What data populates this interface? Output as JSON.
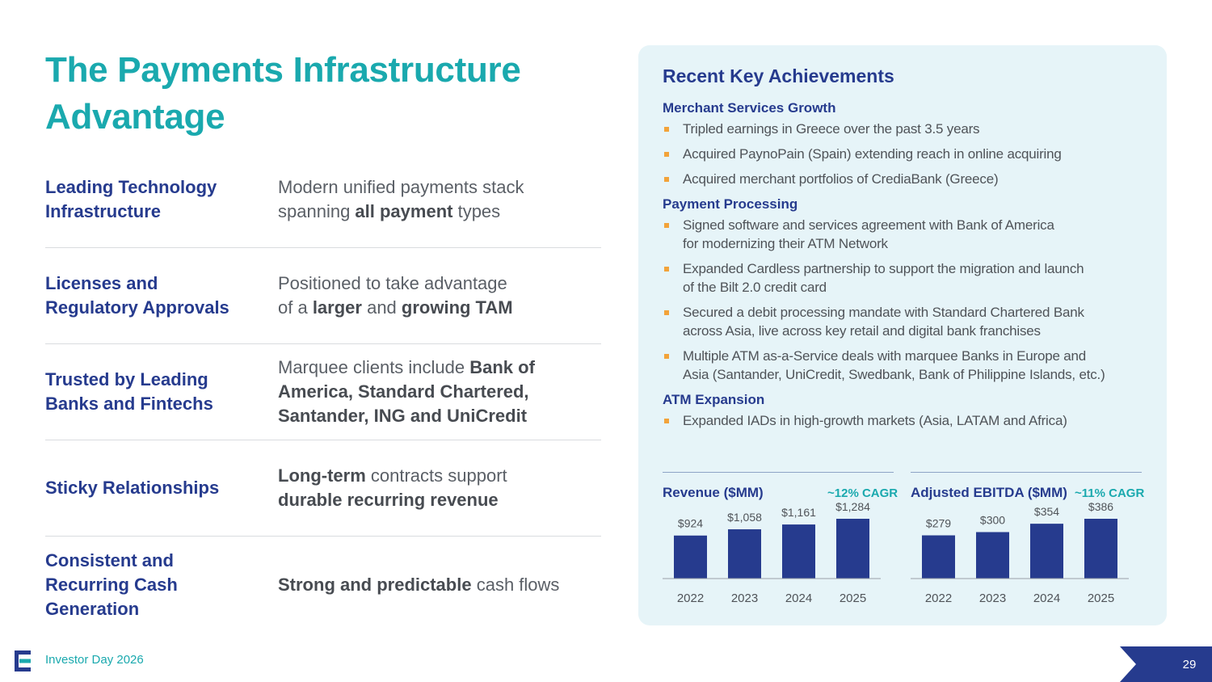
{
  "title": {
    "line1": "The Payments Infrastructure",
    "line2": "Advantage"
  },
  "rows": [
    {
      "label": [
        "Leading Technology",
        "Infrastructure"
      ],
      "desc": [
        [
          {
            "t": "Modern unified payments stack",
            "b": false
          }
        ],
        [
          {
            "t": "spanning ",
            "b": false
          },
          {
            "t": "all payment",
            "b": true
          },
          {
            "t": " types",
            "b": false
          }
        ]
      ]
    },
    {
      "label": [
        "Licenses and",
        "Regulatory Approvals"
      ],
      "desc": [
        [
          {
            "t": "Positioned to take advantage",
            "b": false
          }
        ],
        [
          {
            "t": "of a ",
            "b": false
          },
          {
            "t": "larger",
            "b": true
          },
          {
            "t": " and ",
            "b": false
          },
          {
            "t": "growing TAM",
            "b": true
          }
        ]
      ]
    },
    {
      "label": [
        "Trusted by Leading",
        "Banks and Fintechs"
      ],
      "desc": [
        [
          {
            "t": "Marquee clients include ",
            "b": false
          },
          {
            "t": "Bank of",
            "b": true
          }
        ],
        [
          {
            "t": "America, Standard Chartered,",
            "b": true
          }
        ],
        [
          {
            "t": "Santander, ING and UniCredit",
            "b": true
          }
        ]
      ]
    },
    {
      "label": [
        "Sticky Relationships"
      ],
      "desc": [
        [
          {
            "t": "Long-term",
            "b": true
          },
          {
            "t": " contracts support",
            "b": false
          }
        ],
        [
          {
            "t": "durable recurring revenue",
            "b": true
          }
        ]
      ]
    },
    {
      "label": [
        "Consistent and",
        "Recurring Cash",
        "Generation"
      ],
      "desc": [
        [
          {
            "t": "Strong and predictable",
            "b": true
          },
          {
            "t": " cash flows",
            "b": false
          }
        ]
      ]
    }
  ],
  "panel": {
    "title": "Recent Key Achievements",
    "sections": [
      {
        "title": "Merchant Services Growth",
        "bullets": [
          [
            "Tripled earnings in Greece over the past 3.5 years"
          ],
          [
            "Acquired PaynoPain (Spain) extending reach in online acquiring"
          ],
          [
            "Acquired merchant portfolios of CrediaBank (Greece)"
          ]
        ]
      },
      {
        "title": "Payment Processing",
        "bullets": [
          [
            "Signed software and services agreement with Bank of America",
            "for modernizing their ATM Network"
          ],
          [
            "Expanded Cardless partnership to support the migration and launch",
            "of the Bilt 2.0 credit card"
          ],
          [
            "Secured a debit processing mandate with Standard Chartered Bank",
            "across Asia, live across key retail and digital bank franchises"
          ],
          [
            "Multiple ATM as-a-Service deals with marquee Banks in Europe and",
            "Asia (Santander, UniCredit, Swedbank, Bank of Philippine Islands, etc.)"
          ]
        ]
      },
      {
        "title": "ATM Expansion",
        "bullets": [
          [
            "Expanded IADs in high-growth markets (Asia, LATAM and Africa)"
          ]
        ]
      }
    ]
  },
  "chart_data": [
    {
      "type": "bar",
      "title": "Revenue ($MM)",
      "annotation": "~12% CAGR",
      "categories": [
        "2022",
        "2023",
        "2024",
        "2025"
      ],
      "values": [
        924,
        1058,
        1161,
        1284
      ],
      "labels": [
        "$924",
        "$1,058",
        "$1,161",
        "$1,284"
      ],
      "bar_color": "#263b8e"
    },
    {
      "type": "bar",
      "title": "Adjusted EBITDA ($MM)",
      "annotation": "~11% CAGR",
      "categories": [
        "2022",
        "2023",
        "2024",
        "2025"
      ],
      "values": [
        279,
        300,
        354,
        386
      ],
      "labels": [
        "$279",
        "$300",
        "$354",
        "$386"
      ],
      "bar_color": "#263b8e"
    }
  ],
  "footer": {
    "text": "Investor Day 2026",
    "page": "29"
  },
  "colors": {
    "teal": "#1aa9ae",
    "navy": "#263b8e",
    "bullet": "#f2a33a",
    "panel_bg": "#e6f4f8"
  }
}
